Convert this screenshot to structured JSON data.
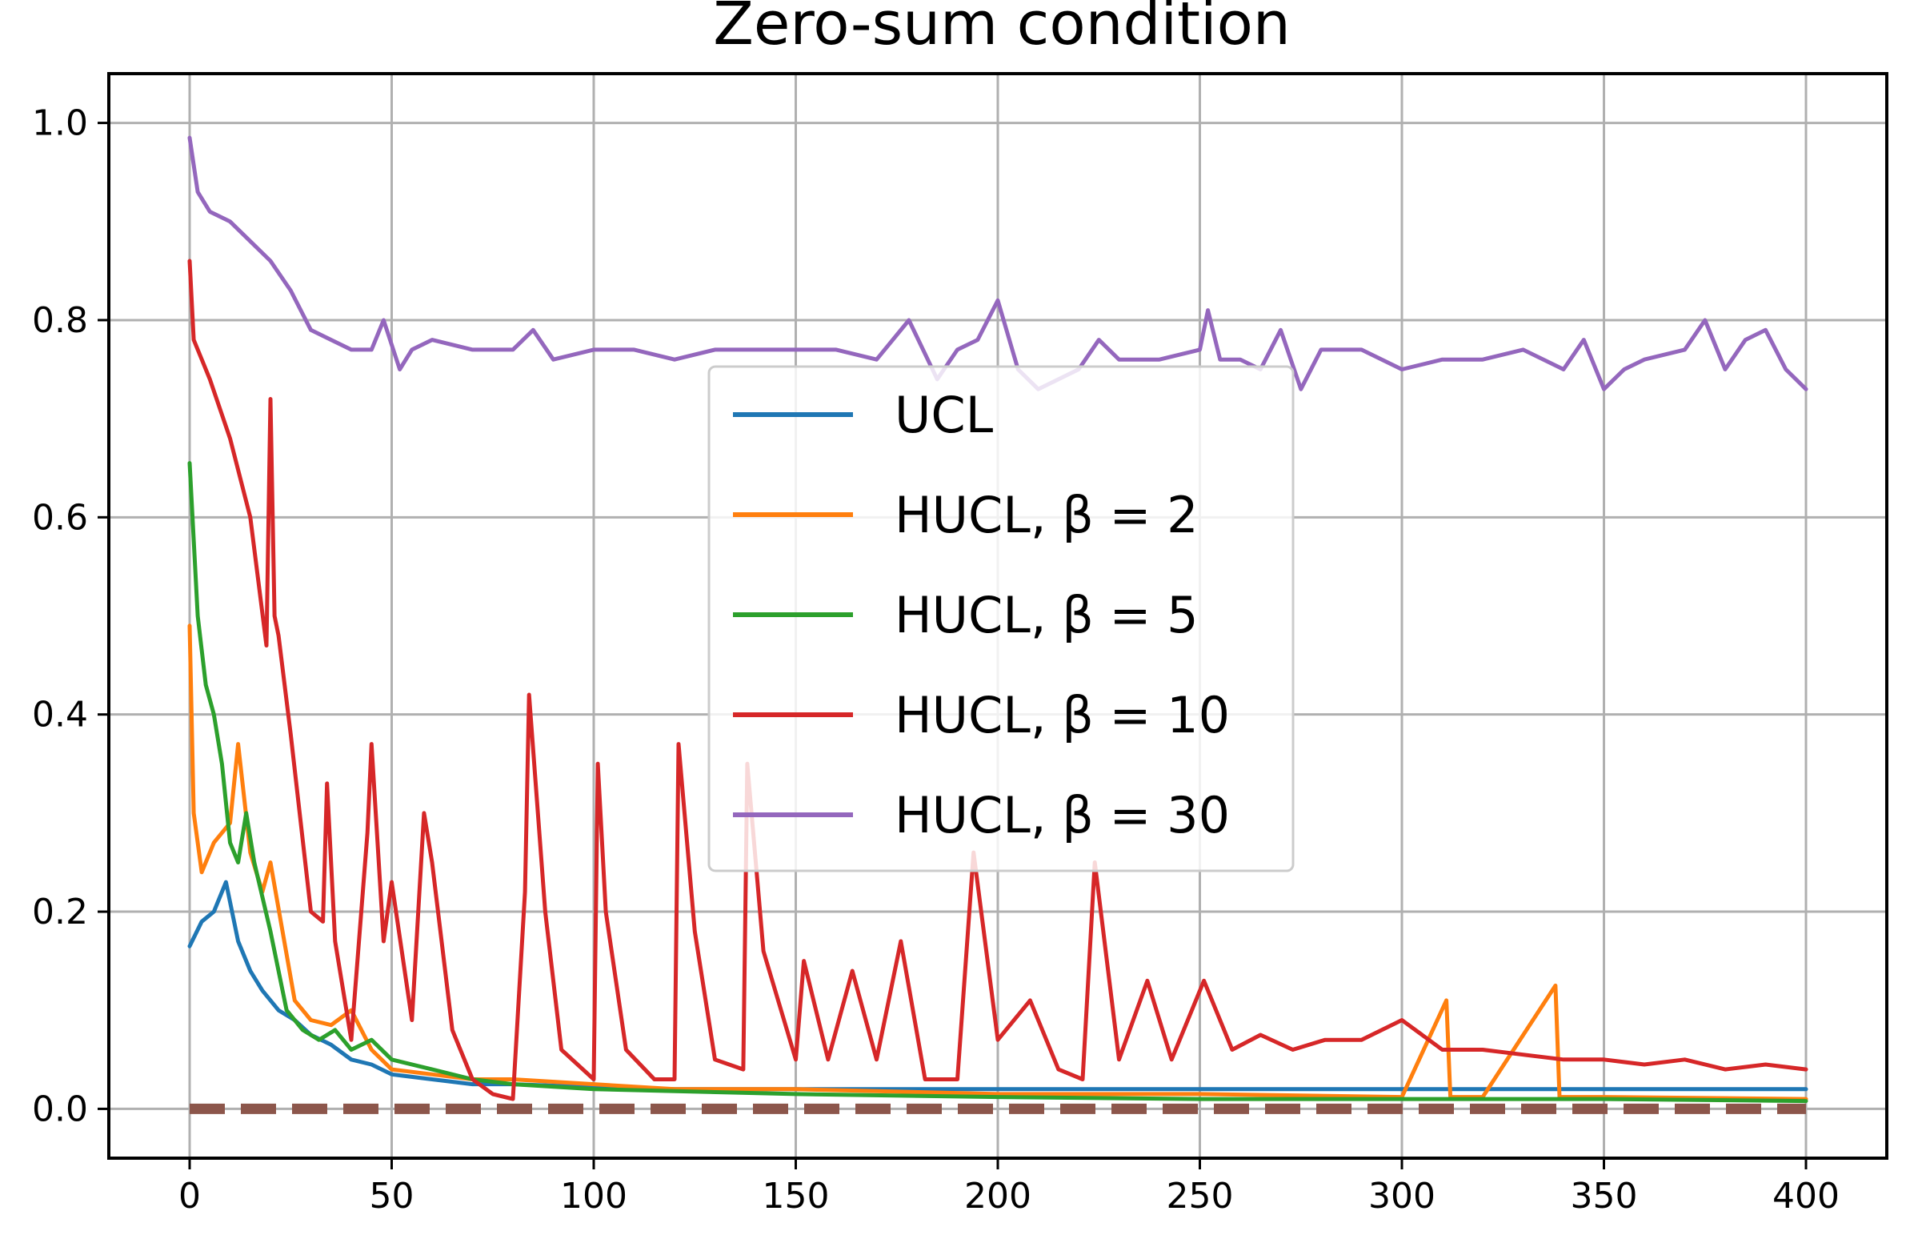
{
  "chart_data": {
    "type": "line",
    "title": "Zero-sum condition",
    "xlabel": "",
    "ylabel": "",
    "xlim": [
      -20,
      420
    ],
    "ylim": [
      -0.05,
      1.05
    ],
    "grid": true,
    "legend_position": "center",
    "xticks": [
      0,
      50,
      100,
      150,
      200,
      250,
      300,
      350,
      400
    ],
    "yticks": [
      0.0,
      0.2,
      0.4,
      0.6,
      0.8,
      1.0
    ],
    "xtick_labels": [
      "0",
      "50",
      "100",
      "150",
      "200",
      "250",
      "300",
      "350",
      "400"
    ],
    "ytick_labels": [
      "0.0",
      "0.2",
      "0.4",
      "0.6",
      "0.8",
      "1.0"
    ],
    "reference_line": {
      "y": 0.0,
      "color": "#8c564b",
      "style": "dashed"
    },
    "series": [
      {
        "name": "UCL",
        "color": "#1f77b4",
        "x": [
          0,
          3,
          6,
          9,
          12,
          15,
          18,
          22,
          26,
          30,
          35,
          40,
          45,
          50,
          60,
          70,
          80,
          100,
          120,
          150,
          200,
          250,
          300,
          350,
          400
        ],
        "y": [
          0.165,
          0.19,
          0.2,
          0.23,
          0.17,
          0.14,
          0.12,
          0.1,
          0.09,
          0.075,
          0.065,
          0.05,
          0.045,
          0.035,
          0.03,
          0.025,
          0.025,
          0.022,
          0.02,
          0.02,
          0.02,
          0.02,
          0.02,
          0.02,
          0.02
        ]
      },
      {
        "name": "HUCL, β = 2",
        "color": "#ff7f0e",
        "x": [
          0,
          1,
          3,
          6,
          10,
          12,
          15,
          18,
          20,
          23,
          26,
          30,
          35,
          40,
          45,
          50,
          60,
          70,
          80,
          100,
          120,
          150,
          200,
          250,
          300,
          311,
          312,
          313,
          320,
          338,
          339,
          340,
          350,
          400
        ],
        "y": [
          0.49,
          0.3,
          0.24,
          0.27,
          0.29,
          0.37,
          0.26,
          0.22,
          0.25,
          0.18,
          0.11,
          0.09,
          0.085,
          0.1,
          0.06,
          0.04,
          0.035,
          0.03,
          0.03,
          0.025,
          0.02,
          0.02,
          0.015,
          0.015,
          0.012,
          0.11,
          0.012,
          0.012,
          0.012,
          0.125,
          0.012,
          0.012,
          0.012,
          0.01
        ]
      },
      {
        "name": "HUCL, β = 5",
        "color": "#2ca02c",
        "x": [
          0,
          2,
          4,
          6,
          8,
          10,
          12,
          14,
          16,
          20,
          24,
          28,
          32,
          36,
          40,
          45,
          50,
          60,
          70,
          80,
          100,
          150,
          200,
          250,
          300,
          350,
          400
        ],
        "y": [
          0.655,
          0.5,
          0.43,
          0.4,
          0.35,
          0.27,
          0.25,
          0.3,
          0.25,
          0.18,
          0.1,
          0.08,
          0.07,
          0.08,
          0.06,
          0.07,
          0.05,
          0.04,
          0.03,
          0.025,
          0.02,
          0.015,
          0.012,
          0.01,
          0.01,
          0.01,
          0.008
        ]
      },
      {
        "name": "HUCL, β = 10",
        "color": "#d62728",
        "x": [
          0,
          1,
          5,
          10,
          15,
          19,
          20,
          21,
          22,
          25,
          30,
          33,
          34,
          36,
          40,
          44,
          45,
          48,
          50,
          55,
          58,
          60,
          65,
          70,
          75,
          80,
          83,
          84,
          88,
          92,
          100,
          101,
          103,
          108,
          115,
          120,
          121,
          125,
          130,
          137,
          138,
          142,
          150,
          152,
          158,
          164,
          170,
          176,
          182,
          190,
          194,
          200,
          208,
          215,
          221,
          224,
          230,
          237,
          243,
          251,
          258,
          265,
          273,
          281,
          290,
          300,
          310,
          320,
          330,
          340,
          350,
          360,
          370,
          380,
          390,
          400
        ],
        "y": [
          0.86,
          0.78,
          0.74,
          0.68,
          0.6,
          0.47,
          0.72,
          0.5,
          0.48,
          0.38,
          0.2,
          0.19,
          0.33,
          0.17,
          0.07,
          0.28,
          0.37,
          0.17,
          0.23,
          0.09,
          0.3,
          0.25,
          0.08,
          0.03,
          0.015,
          0.01,
          0.22,
          0.42,
          0.2,
          0.06,
          0.03,
          0.35,
          0.2,
          0.06,
          0.03,
          0.03,
          0.37,
          0.18,
          0.05,
          0.04,
          0.35,
          0.16,
          0.05,
          0.15,
          0.05,
          0.14,
          0.05,
          0.17,
          0.03,
          0.03,
          0.26,
          0.07,
          0.11,
          0.04,
          0.03,
          0.25,
          0.05,
          0.13,
          0.05,
          0.13,
          0.06,
          0.075,
          0.06,
          0.07,
          0.07,
          0.09,
          0.06,
          0.06,
          0.055,
          0.05,
          0.05,
          0.045,
          0.05,
          0.04,
          0.045,
          0.04
        ]
      },
      {
        "name": "HUCL, β = 30",
        "color": "#9467bd",
        "x": [
          0,
          2,
          5,
          10,
          15,
          20,
          25,
          30,
          35,
          40,
          45,
          48,
          52,
          55,
          60,
          70,
          80,
          85,
          90,
          100,
          110,
          120,
          130,
          140,
          150,
          160,
          170,
          178,
          185,
          190,
          195,
          200,
          205,
          210,
          220,
          225,
          230,
          240,
          250,
          252,
          255,
          260,
          265,
          270,
          275,
          280,
          290,
          300,
          310,
          320,
          330,
          340,
          345,
          350,
          355,
          360,
          370,
          375,
          380,
          385,
          390,
          395,
          400
        ],
        "y": [
          0.985,
          0.93,
          0.91,
          0.9,
          0.88,
          0.86,
          0.83,
          0.79,
          0.78,
          0.77,
          0.77,
          0.8,
          0.75,
          0.77,
          0.78,
          0.77,
          0.77,
          0.79,
          0.76,
          0.77,
          0.77,
          0.76,
          0.77,
          0.77,
          0.77,
          0.77,
          0.76,
          0.8,
          0.74,
          0.77,
          0.78,
          0.82,
          0.75,
          0.73,
          0.75,
          0.78,
          0.76,
          0.76,
          0.77,
          0.81,
          0.76,
          0.76,
          0.75,
          0.79,
          0.73,
          0.77,
          0.77,
          0.75,
          0.76,
          0.76,
          0.77,
          0.75,
          0.78,
          0.73,
          0.75,
          0.76,
          0.77,
          0.8,
          0.75,
          0.78,
          0.79,
          0.75,
          0.73
        ]
      }
    ]
  }
}
